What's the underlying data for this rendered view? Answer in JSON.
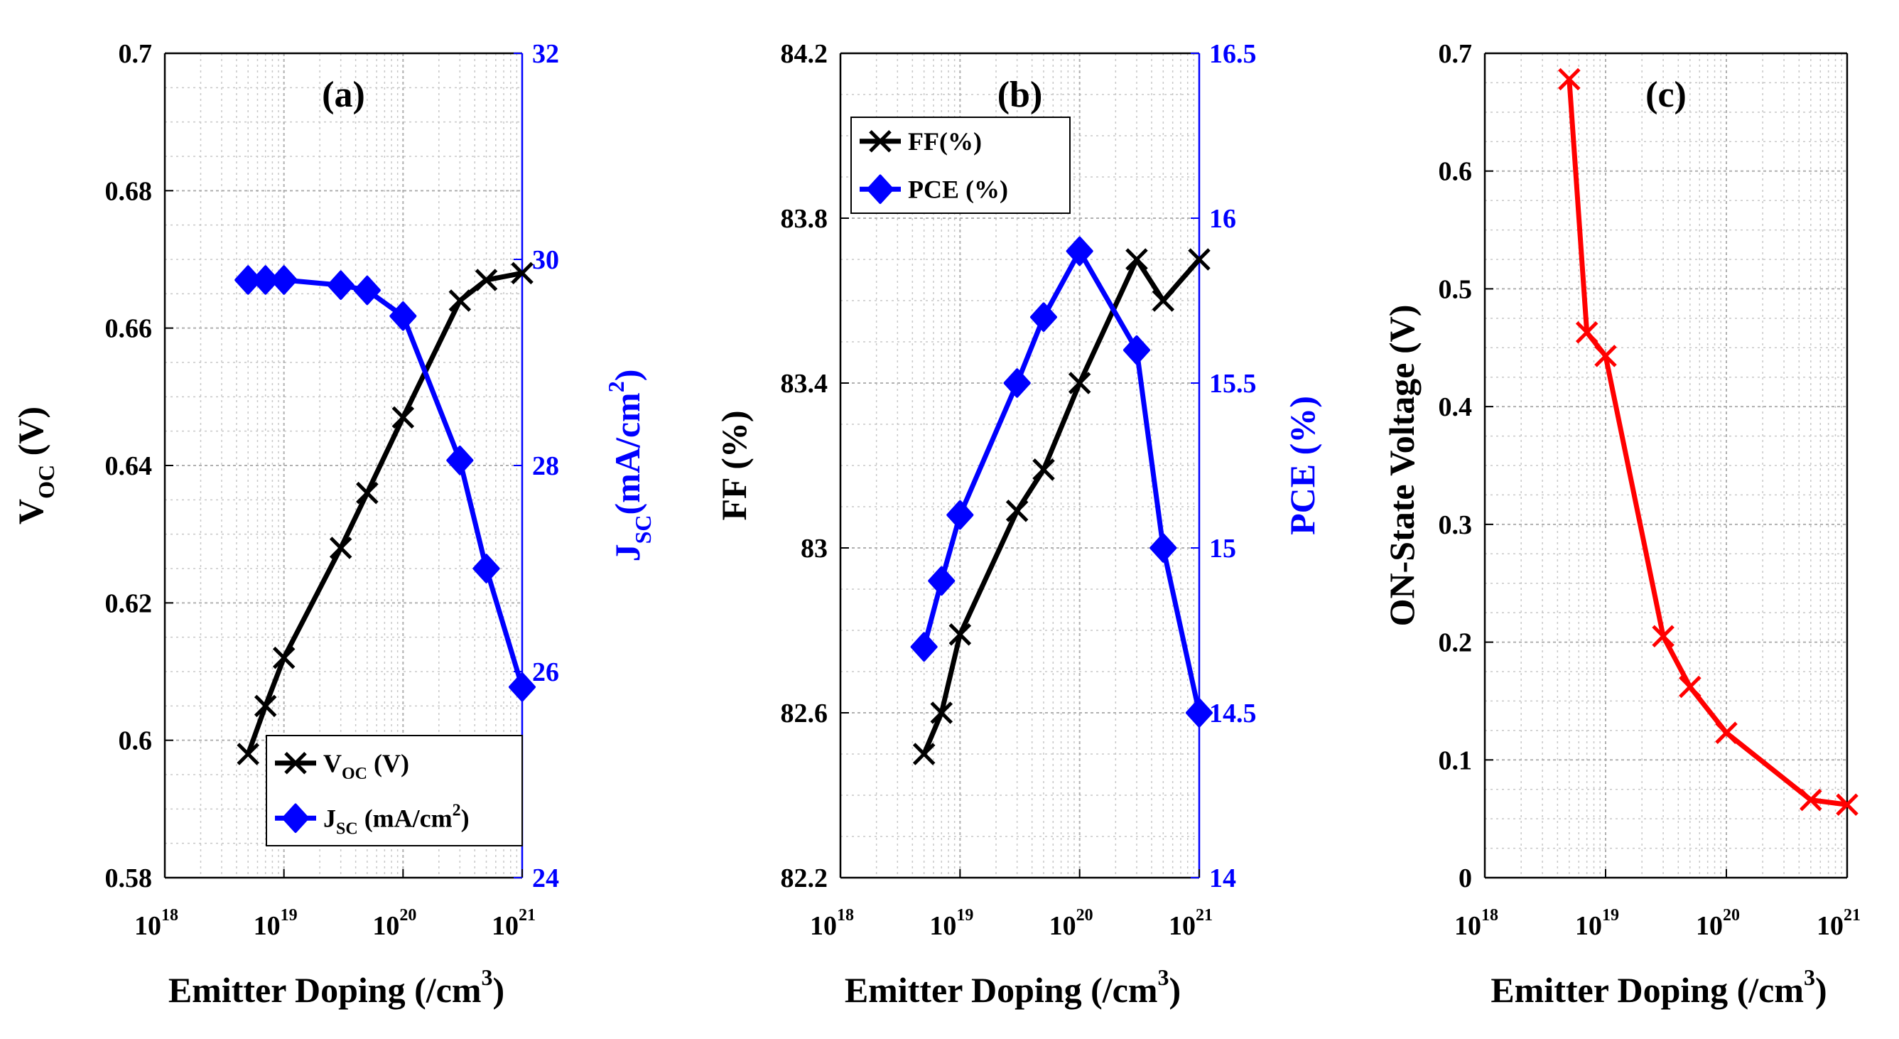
{
  "chart_data": [
    {
      "type": "line",
      "title": "(a)",
      "xlabel": "Emitter Doping (/cm",
      "xlabel_sup": "3",
      "xlabel_close": ")",
      "xscale": "log",
      "xlim": [
        1e+18,
        1e+21
      ],
      "xticks": [
        {
          "value": 1e+18,
          "base": "10",
          "exp": "18"
        },
        {
          "value": 1e+19,
          "base": "10",
          "exp": "19"
        },
        {
          "value": 1e+20,
          "base": "10",
          "exp": "20"
        },
        {
          "value": 1e+21,
          "base": "10",
          "exp": "21"
        }
      ],
      "y_left": {
        "label_main": "V",
        "label_sub": "OC",
        "label_rest": " (V)",
        "lim": [
          0.58,
          0.7
        ],
        "ticks": [
          0.58,
          0.6,
          0.62,
          0.64,
          0.66,
          0.68,
          0.7
        ],
        "tick_labels": [
          "0.58",
          "0.6",
          "0.62",
          "0.64",
          "0.66",
          "0.68",
          "0.7"
        ],
        "color": "#000000"
      },
      "y_right": {
        "label_main": "J",
        "label_sub": "SC",
        "label_rest": "(mA/cm",
        "label_sup": "2",
        "label_close": ")",
        "lim": [
          24,
          32
        ],
        "ticks": [
          24,
          26,
          28,
          30,
          32
        ],
        "tick_labels": [
          "24",
          "26",
          "28",
          "30",
          "32"
        ],
        "color": "#0000ff"
      },
      "series": [
        {
          "name": "VOC (V)",
          "axis": "left",
          "color": "#000000",
          "marker": "x",
          "x": [
            5e+18,
            7e+18,
            1e+19,
            3e+19,
            5e+19,
            1e+20,
            3e+20,
            5e+20,
            1e+21
          ],
          "y": [
            0.598,
            0.605,
            0.612,
            0.628,
            0.636,
            0.647,
            0.664,
            0.667,
            0.668
          ]
        },
        {
          "name": "JSC (mA/cm2)",
          "axis": "right",
          "color": "#0000ff",
          "marker": "diamond",
          "x": [
            5e+18,
            7e+18,
            1e+19,
            3e+19,
            5e+19,
            1e+20,
            3e+20,
            5e+20,
            1e+21
          ],
          "y": [
            29.8,
            29.8,
            29.8,
            29.75,
            29.7,
            29.45,
            28.05,
            27.0,
            25.85
          ]
        }
      ],
      "legend": {
        "position": "bottom-right",
        "items": [
          {
            "main": "V",
            "sub": "OC",
            "rest": " (V)"
          },
          {
            "main": "J",
            "sub": "SC",
            "rest": " (mA/cm",
            "sup": "2",
            "close": ")"
          }
        ]
      },
      "grid": true
    },
    {
      "type": "line",
      "title": "(b)",
      "xlabel": "Emitter Doping (/cm",
      "xlabel_sup": "3",
      "xlabel_close": ")",
      "xscale": "log",
      "xlim": [
        1e+18,
        1e+21
      ],
      "xticks": [
        {
          "value": 1e+18,
          "base": "10",
          "exp": "18"
        },
        {
          "value": 1e+19,
          "base": "10",
          "exp": "19"
        },
        {
          "value": 1e+20,
          "base": "10",
          "exp": "20"
        },
        {
          "value": 1e+21,
          "base": "10",
          "exp": "21"
        }
      ],
      "y_left": {
        "label_main": "FF (%)",
        "lim": [
          82.2,
          84.2
        ],
        "ticks": [
          82.2,
          82.6,
          83.0,
          83.4,
          83.8,
          84.2
        ],
        "tick_labels": [
          "82.2",
          "82.6",
          "83",
          "83.4",
          "83.8",
          "84.2"
        ],
        "color": "#000000"
      },
      "y_right": {
        "label_main": "PCE (%)",
        "lim": [
          14,
          16.5
        ],
        "ticks": [
          14,
          14.5,
          15,
          15.5,
          16,
          16.5
        ],
        "tick_labels": [
          "14",
          "14.5",
          "15",
          "15.5",
          "16",
          "16.5"
        ],
        "color": "#0000ff"
      },
      "series": [
        {
          "name": "FF(%)",
          "axis": "left",
          "color": "#000000",
          "marker": "x",
          "x": [
            5e+18,
            7e+18,
            1e+19,
            3e+19,
            5e+19,
            1e+20,
            3e+20,
            5e+20,
            1e+21
          ],
          "y": [
            82.5,
            82.6,
            82.79,
            83.09,
            83.19,
            83.4,
            83.7,
            83.6,
            83.7
          ]
        },
        {
          "name": "PCE (%)",
          "axis": "right",
          "color": "#0000ff",
          "marker": "diamond",
          "x": [
            5e+18,
            7e+18,
            1e+19,
            3e+19,
            5e+19,
            1e+20,
            3e+20,
            5e+20,
            1e+21
          ],
          "y": [
            14.7,
            14.9,
            15.1,
            15.5,
            15.7,
            15.9,
            15.6,
            15.0,
            14.5
          ]
        }
      ],
      "legend": {
        "position": "top-left",
        "items": [
          {
            "main": "FF(%)"
          },
          {
            "main": "PCE (%)"
          }
        ]
      },
      "grid": true
    },
    {
      "type": "line",
      "title": "(c)",
      "xlabel": "Emitter Doping (/cm",
      "xlabel_sup": "3",
      "xlabel_close": ")",
      "xscale": "log",
      "xlim": [
        1e+18,
        1e+21
      ],
      "xticks": [
        {
          "value": 1e+18,
          "base": "10",
          "exp": "18"
        },
        {
          "value": 1e+19,
          "base": "10",
          "exp": "19"
        },
        {
          "value": 1e+20,
          "base": "10",
          "exp": "20"
        },
        {
          "value": 1e+21,
          "base": "10",
          "exp": "21"
        }
      ],
      "y_left": {
        "label_main": "ON-State Voltage (V)",
        "lim": [
          0,
          0.7
        ],
        "ticks": [
          0,
          0.1,
          0.2,
          0.3,
          0.4,
          0.5,
          0.6,
          0.7
        ],
        "tick_labels": [
          "0",
          "0.1",
          "0.2",
          "0.3",
          "0.4",
          "0.5",
          "0.6",
          "0.7"
        ],
        "color": "#000000"
      },
      "series": [
        {
          "name": "ON-State Voltage (V)",
          "axis": "left",
          "color": "#ff0000",
          "marker": "x",
          "x": [
            5e+18,
            7e+18,
            1e+19,
            3e+19,
            5e+19,
            1e+20,
            5e+20,
            1e+21
          ],
          "y": [
            0.678,
            0.463,
            0.443,
            0.205,
            0.162,
            0.123,
            0.066,
            0.062
          ]
        }
      ],
      "grid": true
    }
  ]
}
